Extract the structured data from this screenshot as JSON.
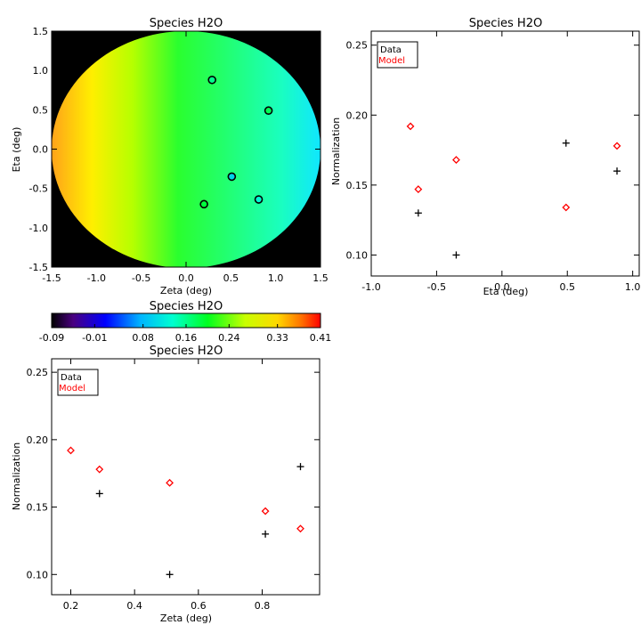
{
  "colors": {
    "data": "#000000",
    "model": "#ff0000",
    "background": "#000000",
    "axis": "#000000"
  },
  "legend": {
    "data_label": "Data",
    "model_label": "Model"
  },
  "map_plot": {
    "title": "Species H2O",
    "xlabel": "Zeta (deg)",
    "ylabel": "Eta (deg)",
    "xlim": [
      -1.5,
      1.5
    ],
    "ylim": [
      -1.5,
      1.5
    ],
    "xticks": [
      "-1.5",
      "-1.0",
      "-0.5",
      "0.0",
      "0.5",
      "1.0",
      "1.5"
    ],
    "yticks": [
      "-1.5",
      "-1.0",
      "-0.5",
      "0.0",
      "0.5",
      "1.0",
      "1.5"
    ],
    "points": [
      {
        "zeta": 0.29,
        "eta": 0.88,
        "value": 0.16
      },
      {
        "zeta": 0.92,
        "eta": 0.49,
        "value": 0.18
      },
      {
        "zeta": 0.51,
        "eta": -0.35,
        "value": 0.1
      },
      {
        "zeta": 0.81,
        "eta": -0.64,
        "value": 0.13
      },
      {
        "zeta": 0.2,
        "eta": -0.7,
        "value": 0.19
      }
    ]
  },
  "colorbar": {
    "title": "Species H2O",
    "min": -0.09,
    "max": 0.41,
    "ticks": [
      "-0.09",
      "-0.01",
      "0.08",
      "0.16",
      "0.24",
      "0.33",
      "0.41"
    ]
  },
  "chart_data": [
    {
      "type": "scatter",
      "title": "Species H2O",
      "xlabel": "Eta (deg)",
      "ylabel": "Normalization",
      "xlim": [
        -1.0,
        1.05
      ],
      "ylim": [
        0.085,
        0.26
      ],
      "xticks": [
        "-1.0",
        "-0.5",
        "0.0",
        "0.5",
        "1.0"
      ],
      "yticks": [
        "0.10",
        "0.15",
        "0.20",
        "0.25"
      ],
      "series": [
        {
          "name": "Data",
          "marker": "plus",
          "x": [
            -0.64,
            -0.35,
            0.49,
            0.88
          ],
          "y": [
            0.13,
            0.1,
            0.18,
            0.16
          ]
        },
        {
          "name": "Model",
          "marker": "diamond",
          "x": [
            -0.7,
            -0.64,
            -0.35,
            0.49,
            0.88
          ],
          "y": [
            0.192,
            0.147,
            0.168,
            0.134,
            0.178
          ]
        }
      ]
    },
    {
      "type": "scatter",
      "title": "Species H2O",
      "xlabel": "Zeta (deg)",
      "ylabel": "Normalization",
      "xlim": [
        0.14,
        0.98
      ],
      "ylim": [
        0.085,
        0.26
      ],
      "xticks": [
        "0.2",
        "0.4",
        "0.6",
        "0.8"
      ],
      "yticks": [
        "0.10",
        "0.15",
        "0.20",
        "0.25"
      ],
      "series": [
        {
          "name": "Data",
          "marker": "plus",
          "x": [
            0.29,
            0.51,
            0.81,
            0.92
          ],
          "y": [
            0.16,
            0.1,
            0.13,
            0.18
          ]
        },
        {
          "name": "Model",
          "marker": "diamond",
          "x": [
            0.2,
            0.29,
            0.51,
            0.81,
            0.92
          ],
          "y": [
            0.192,
            0.178,
            0.168,
            0.147,
            0.134
          ]
        }
      ]
    }
  ]
}
